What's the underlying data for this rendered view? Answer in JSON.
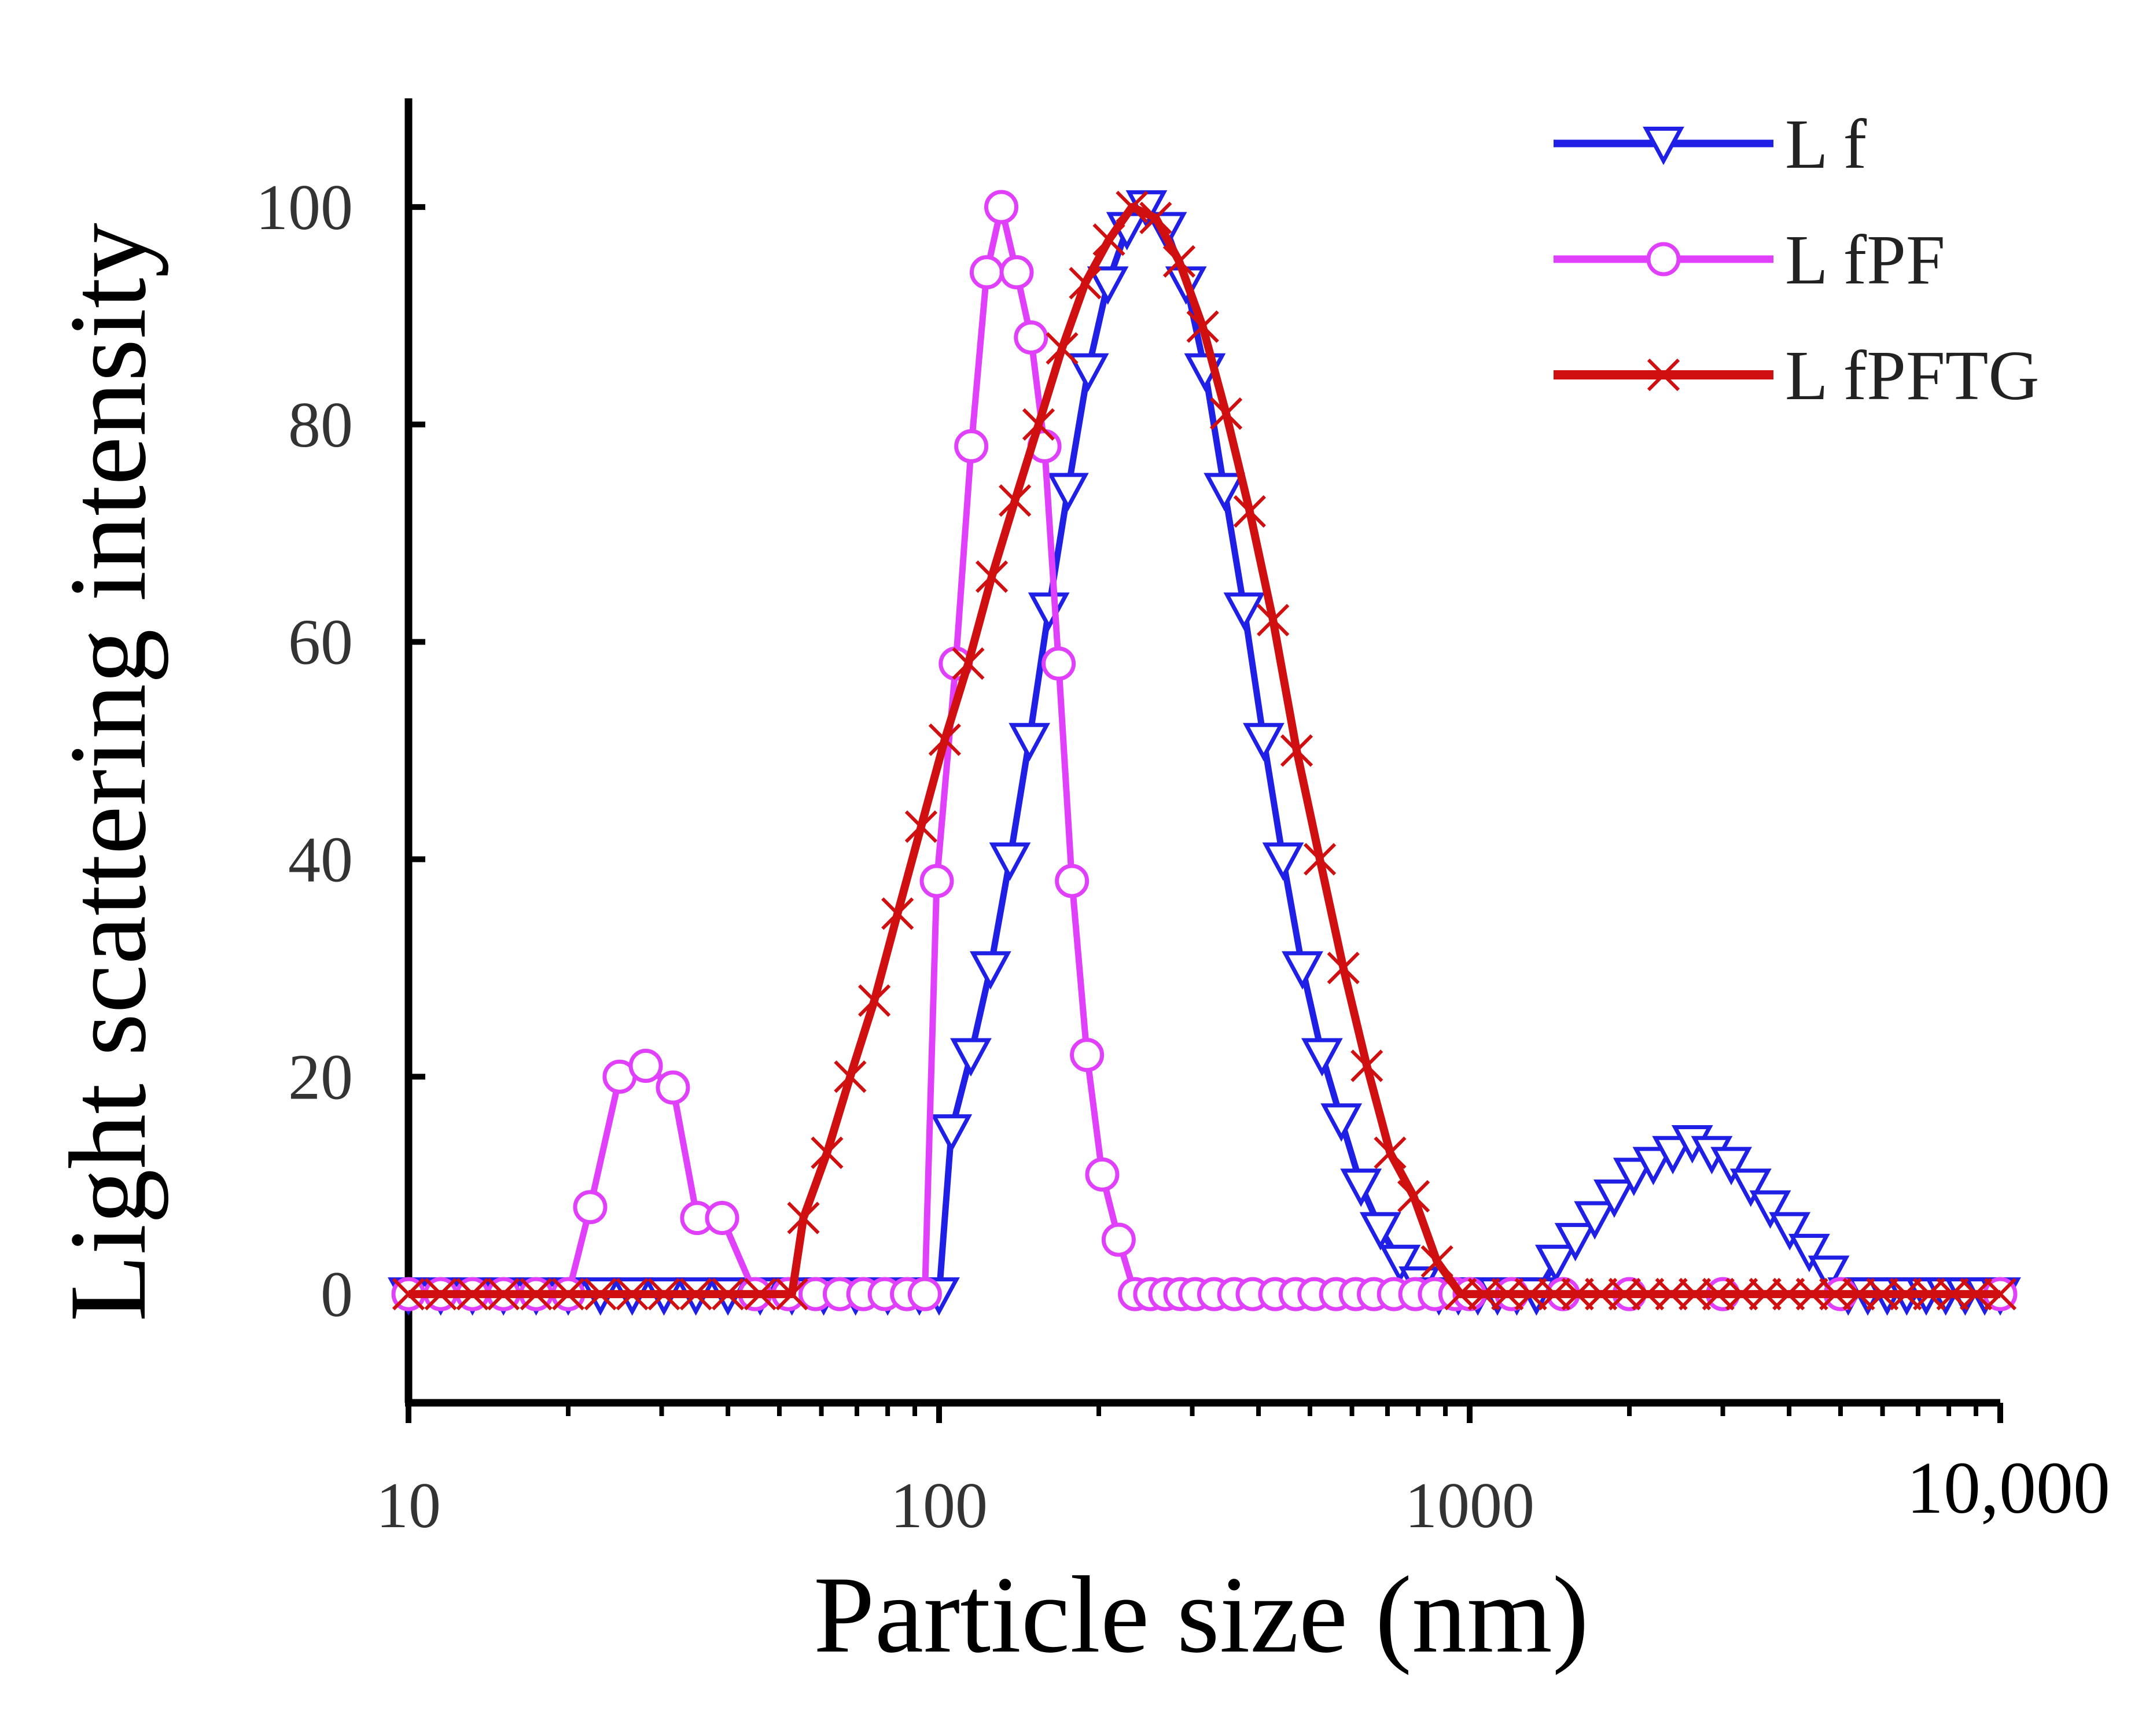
{
  "chart_data": {
    "type": "line",
    "xscale": "log",
    "xlabel": "Particle size (nm)",
    "ylabel": "Light scattering intensity",
    "xlim": [
      10,
      10000
    ],
    "ylim": [
      -10,
      110
    ],
    "xticks": [
      10,
      100,
      1000,
      10000
    ],
    "xtick_labels": [
      "10",
      "100",
      "1000",
      "10,000"
    ],
    "yticks": [
      0,
      20,
      40,
      60,
      80,
      100
    ],
    "ytick_labels": [
      "0",
      "20",
      "40",
      "60",
      "80",
      "100"
    ],
    "grid": false,
    "legend": "top-right",
    "series": [
      {
        "name": "L f",
        "color": "#1f1fe6",
        "marker": "triangle-down",
        "x": [
          10,
          11.5,
          13.2,
          15.1,
          17.4,
          20,
          23,
          26.4,
          30.3,
          34.8,
          40,
          46,
          52.8,
          60.6,
          69.6,
          80,
          91.8,
          100,
          105.5,
          114.8,
          125,
          136,
          148,
          161,
          175,
          191,
          208,
          226,
          246,
          268,
          292,
          317,
          345,
          376,
          409,
          445,
          484,
          527,
          573,
          624,
          679,
          739,
          804,
          875,
          952,
          1036,
          1128,
          1227,
          1336,
          1453,
          1582,
          1721,
          1873,
          2039,
          2219,
          2415,
          2628,
          2860,
          3112,
          3387,
          3686,
          4011,
          4365,
          4751,
          5170,
          5627,
          6123,
          6664,
          7252,
          7892,
          8589,
          9347,
          10000
        ],
        "y": [
          0,
          0,
          0,
          0,
          0,
          0,
          0,
          0,
          0,
          0,
          0,
          0,
          0,
          0,
          0,
          0,
          0,
          0,
          15,
          22,
          30,
          40,
          51,
          63,
          74,
          85,
          93,
          98,
          100,
          98,
          93,
          85,
          74,
          63,
          51,
          40,
          30,
          22,
          16,
          10,
          6,
          3,
          1,
          0,
          0,
          0,
          0,
          0,
          0,
          3,
          5,
          7,
          9,
          11,
          12,
          13,
          14,
          13,
          12,
          10,
          8,
          6,
          4,
          2,
          0,
          0,
          0,
          0,
          0,
          0,
          0,
          0,
          0
        ]
      },
      {
        "name": "L fPF",
        "color": "#e040fb",
        "marker": "circle",
        "x": [
          10,
          11.5,
          13.2,
          15.1,
          17.4,
          20,
          22,
          25,
          28,
          31.5,
          35,
          39,
          45,
          52,
          58.5,
          65,
          72,
          79,
          87,
          94,
          99,
          107.5,
          115,
          123,
          131,
          140,
          149,
          158,
          168,
          178,
          190,
          203,
          218,
          234,
          250,
          267,
          285,
          304,
          330,
          360,
          390,
          430,
          470,
          510,
          560,
          610,
          660,
          720,
          790,
          860,
          940,
          1000,
          1200,
          1500,
          2000,
          3000,
          5000,
          10000
        ],
        "y": [
          0,
          0,
          0,
          0,
          0,
          0,
          8,
          20,
          21,
          19,
          7,
          7,
          0,
          0,
          0,
          0,
          0,
          0,
          0,
          0,
          38,
          58,
          78,
          94,
          100,
          94,
          88,
          78,
          58,
          38,
          22,
          11,
          5,
          0,
          0,
          0,
          0,
          0,
          0,
          0,
          0,
          0,
          0,
          0,
          0,
          0,
          0,
          0,
          0,
          0,
          0,
          0,
          0,
          0,
          0,
          0,
          0,
          0
        ]
      },
      {
        "name": "L fPFTG",
        "color": "#d01010",
        "marker": "x",
        "x": [
          10,
          11.5,
          13.2,
          15.1,
          17.4,
          20,
          23,
          26.4,
          30.3,
          34.8,
          40,
          46,
          52.8,
          55.5,
          61.5,
          68,
          75.5,
          83.5,
          92.5,
          102.5,
          113.5,
          125.7,
          139,
          154,
          170.5,
          188.5,
          209,
          231,
          256,
          283.5,
          314,
          347.5,
          385,
          426,
          472,
          522,
          578,
          640,
          708,
          784,
          868,
          961,
          1064,
          1178,
          1304,
          1444,
          1598,
          1769,
          1959,
          2168,
          2400,
          2657,
          2942,
          3256,
          3605,
          3991,
          4418,
          4891,
          5414,
          5994,
          6635,
          7345,
          8131,
          9001,
          10000
        ],
        "y": [
          0,
          0,
          0,
          0,
          0,
          0,
          0,
          0,
          0,
          0,
          0,
          0,
          0,
          7,
          13,
          20,
          27,
          35,
          43,
          51,
          58,
          66,
          73,
          80,
          87,
          93,
          97,
          100,
          99,
          95,
          89,
          81,
          72,
          62,
          50,
          40,
          30,
          21,
          13,
          9,
          3,
          0,
          0,
          0,
          0,
          0,
          0,
          0,
          0,
          0,
          0,
          0,
          0,
          0,
          0,
          0,
          0,
          0,
          0,
          0,
          0,
          0,
          0,
          0,
          0
        ]
      }
    ]
  }
}
